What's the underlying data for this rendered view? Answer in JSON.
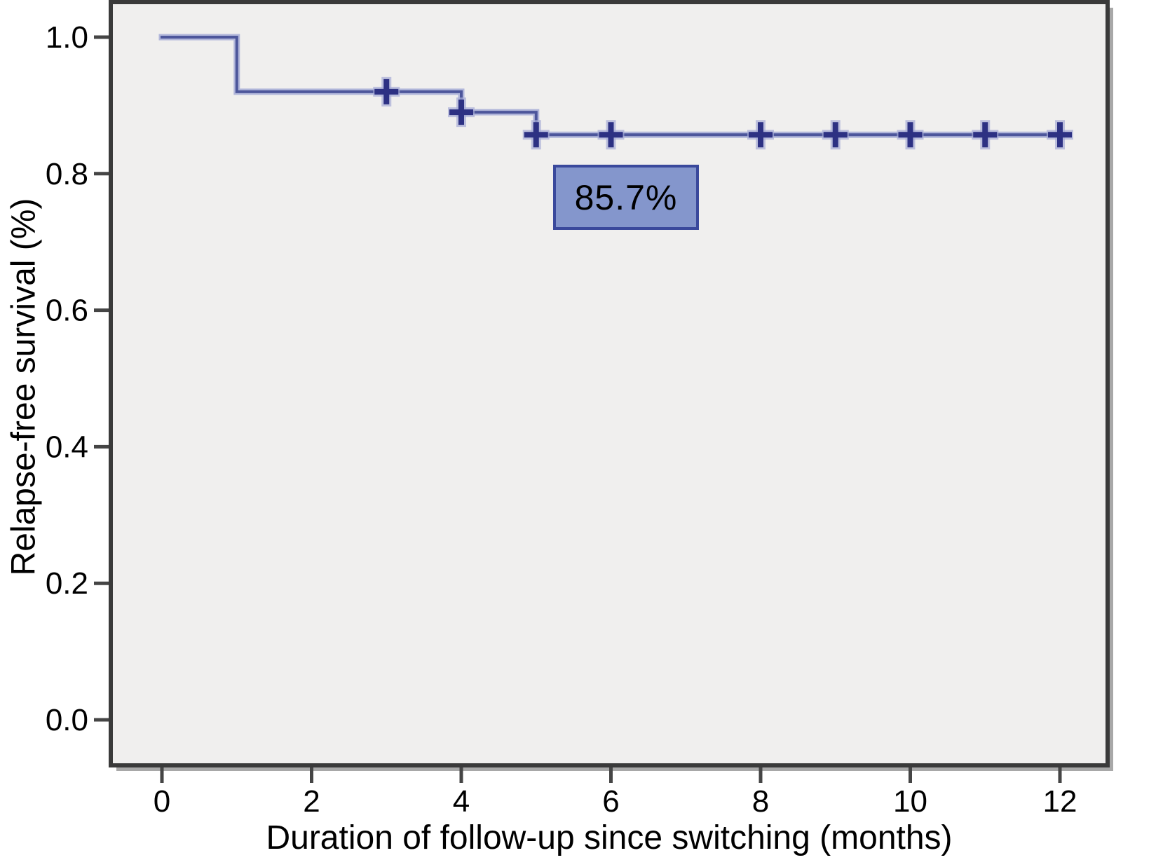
{
  "chart_data": {
    "type": "line",
    "subtype": "kaplan_meier_step",
    "title": "",
    "xlabel": "Duration of follow-up since switching (months)",
    "ylabel": "Relapse-free survival (%)",
    "xlim": [
      0,
      12
    ],
    "ylim": [
      0.0,
      1.0
    ],
    "grid": false,
    "legend": "none",
    "x_ticks": [
      {
        "value": 0,
        "label": "0"
      },
      {
        "value": 2,
        "label": "2"
      },
      {
        "value": 4,
        "label": "4"
      },
      {
        "value": 6,
        "label": "6"
      },
      {
        "value": 8,
        "label": "8"
      },
      {
        "value": 10,
        "label": "10"
      },
      {
        "value": 12,
        "label": "12"
      }
    ],
    "y_ticks": [
      {
        "value": 0.0,
        "label": "0.0"
      },
      {
        "value": 0.2,
        "label": "0.2"
      },
      {
        "value": 0.4,
        "label": "0.4"
      },
      {
        "value": 0.6,
        "label": "0.6"
      },
      {
        "value": 0.8,
        "label": "0.8"
      },
      {
        "value": 1.0,
        "label": "1.0"
      }
    ],
    "series": [
      {
        "name": "Relapse-free survival",
        "draw_style": "step",
        "step_points": [
          [
            0,
            1.0
          ],
          [
            1,
            1.0
          ],
          [
            1,
            0.92
          ],
          [
            4,
            0.92
          ],
          [
            4,
            0.89
          ],
          [
            5,
            0.89
          ],
          [
            5,
            0.857
          ],
          [
            12,
            0.857
          ]
        ],
        "censor_marks": [
          [
            3,
            0.92
          ],
          [
            4,
            0.89
          ],
          [
            5,
            0.857
          ],
          [
            6,
            0.857
          ],
          [
            8,
            0.857
          ],
          [
            9,
            0.857
          ],
          [
            10,
            0.857
          ],
          [
            11,
            0.857
          ],
          [
            12,
            0.857
          ]
        ],
        "line_color": "#4d569b",
        "line_halo_color": "#a6acd6",
        "censor_color": "#2d3183",
        "censor_halo_color": "#a7add5"
      }
    ],
    "annotation": {
      "text": "85.7%",
      "x_range": [
        5.23,
        7.18
      ],
      "y_range": [
        0.718,
        0.813
      ],
      "fill": "#8496cc",
      "border_color": "#3a499c",
      "text_color": "#000000"
    },
    "colors": {
      "page_background": "#ffffff",
      "plot_background": "#f0efee",
      "frame": "#3a3a3a",
      "frame_shadow": "#a8a8a8",
      "tick": "#454545",
      "label_text": "#000000"
    }
  }
}
